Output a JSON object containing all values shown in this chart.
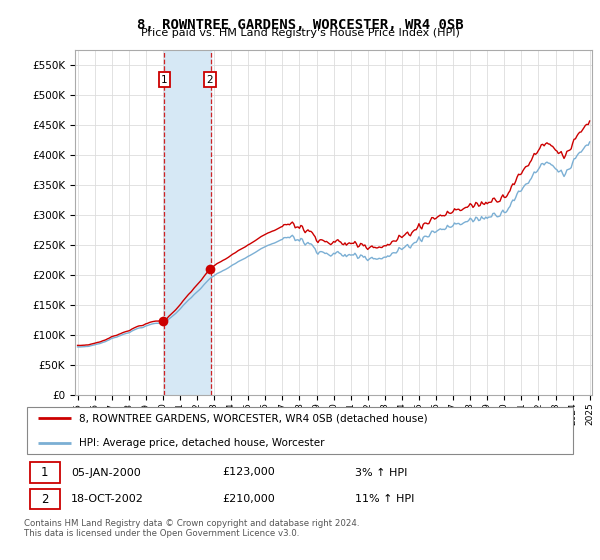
{
  "title": "8, ROWNTREE GARDENS, WORCESTER, WR4 0SB",
  "subtitle": "Price paid vs. HM Land Registry's House Price Index (HPI)",
  "legend_line1": "8, ROWNTREE GARDENS, WORCESTER, WR4 0SB (detached house)",
  "legend_line2": "HPI: Average price, detached house, Worcester",
  "transaction1_date": "05-JAN-2000",
  "transaction1_price": "£123,000",
  "transaction1_hpi": "3% ↑ HPI",
  "transaction2_date": "18-OCT-2002",
  "transaction2_price": "£210,000",
  "transaction2_hpi": "11% ↑ HPI",
  "footer": "Contains HM Land Registry data © Crown copyright and database right 2024.\nThis data is licensed under the Open Government Licence v3.0.",
  "hpi_color": "#7bafd4",
  "price_color": "#cc0000",
  "shade_color": "#d6e8f5",
  "ylim_min": 0,
  "ylim_max": 575000,
  "x_start_year": 1995,
  "x_end_year": 2025,
  "t1": 2000.04,
  "t2": 2002.79,
  "p1": 123000,
  "p2": 210000
}
